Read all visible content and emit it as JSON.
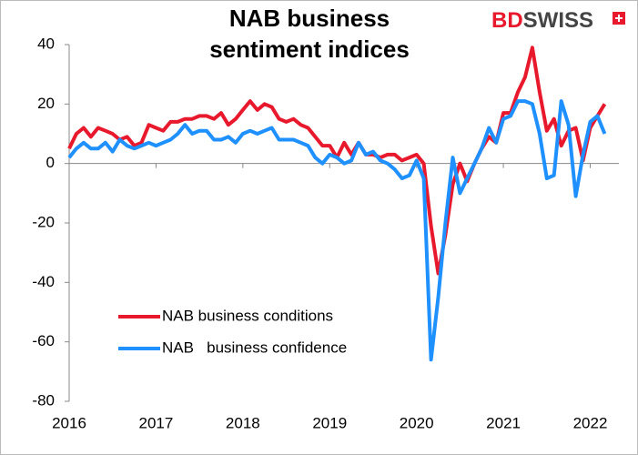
{
  "chart_data": {
    "type": "line",
    "title": [
      "NAB business",
      "sentiment indices"
    ],
    "watermark": [
      "BD",
      "SWISS"
    ],
    "x": [
      2016,
      2016.083,
      2016.167,
      2016.25,
      2016.333,
      2016.417,
      2016.5,
      2016.583,
      2016.667,
      2016.75,
      2016.833,
      2016.917,
      2017,
      2017.083,
      2017.167,
      2017.25,
      2017.333,
      2017.417,
      2017.5,
      2017.583,
      2017.667,
      2017.75,
      2017.833,
      2017.917,
      2018,
      2018.083,
      2018.167,
      2018.25,
      2018.333,
      2018.417,
      2018.5,
      2018.583,
      2018.667,
      2018.75,
      2018.833,
      2018.917,
      2019,
      2019.083,
      2019.167,
      2019.25,
      2019.333,
      2019.417,
      2019.5,
      2019.583,
      2019.667,
      2019.75,
      2019.833,
      2019.917,
      2020,
      2020.083,
      2020.167,
      2020.25,
      2020.333,
      2020.417,
      2020.5,
      2020.583,
      2020.667,
      2020.75,
      2020.833,
      2020.917,
      2021,
      2021.083,
      2021.167,
      2021.25,
      2021.333,
      2021.417,
      2021.5,
      2021.583,
      2021.667,
      2021.75,
      2021.833,
      2021.917,
      2022,
      2022.083,
      2022.167
    ],
    "series": [
      {
        "name": "NAB business conditions",
        "color": "#e8192c",
        "values": [
          5,
          10,
          12,
          9,
          12,
          11,
          10,
          8,
          9,
          6,
          7,
          13,
          12,
          11,
          14,
          14,
          15,
          15,
          16,
          16,
          15,
          17,
          13,
          15,
          18,
          21,
          18,
          20,
          19,
          15,
          14,
          15,
          13,
          12,
          9,
          6,
          6,
          2,
          7,
          3,
          7,
          3,
          3,
          2,
          3,
          3,
          1,
          2,
          3,
          0,
          -21,
          -37,
          -24,
          -7,
          0,
          -6,
          0,
          5,
          9,
          7,
          17,
          17,
          24,
          29,
          39,
          24,
          11,
          15,
          6,
          11,
          12,
          1,
          12,
          16,
          20
        ]
      },
      {
        "name": "NAB   business confidence",
        "color": "#1e90ff",
        "values": [
          2,
          5,
          7,
          5,
          5,
          7,
          4,
          8,
          6,
          5,
          6,
          7,
          6,
          7,
          8,
          10,
          13,
          10,
          11,
          11,
          8,
          8,
          9,
          7,
          10,
          11,
          10,
          11,
          12,
          8,
          8,
          8,
          7,
          6,
          2,
          0,
          3,
          2,
          0,
          1,
          7,
          3,
          4,
          1,
          0,
          -2,
          -5,
          -4,
          1,
          -5,
          -66,
          -45,
          -20,
          2,
          -10,
          -5,
          0,
          5,
          12,
          7,
          15,
          16,
          21,
          21,
          20,
          10,
          -5,
          -4,
          21,
          13,
          -11,
          3,
          14,
          16,
          10
        ]
      }
    ],
    "xlim": [
      2016,
      2022.33
    ],
    "xticks": [
      2016,
      2017,
      2018,
      2019,
      2020,
      2021,
      2022
    ],
    "ylim": [
      -80,
      40
    ],
    "yticks": [
      -80,
      -60,
      -40,
      -20,
      0,
      20,
      40
    ],
    "grid": false
  }
}
